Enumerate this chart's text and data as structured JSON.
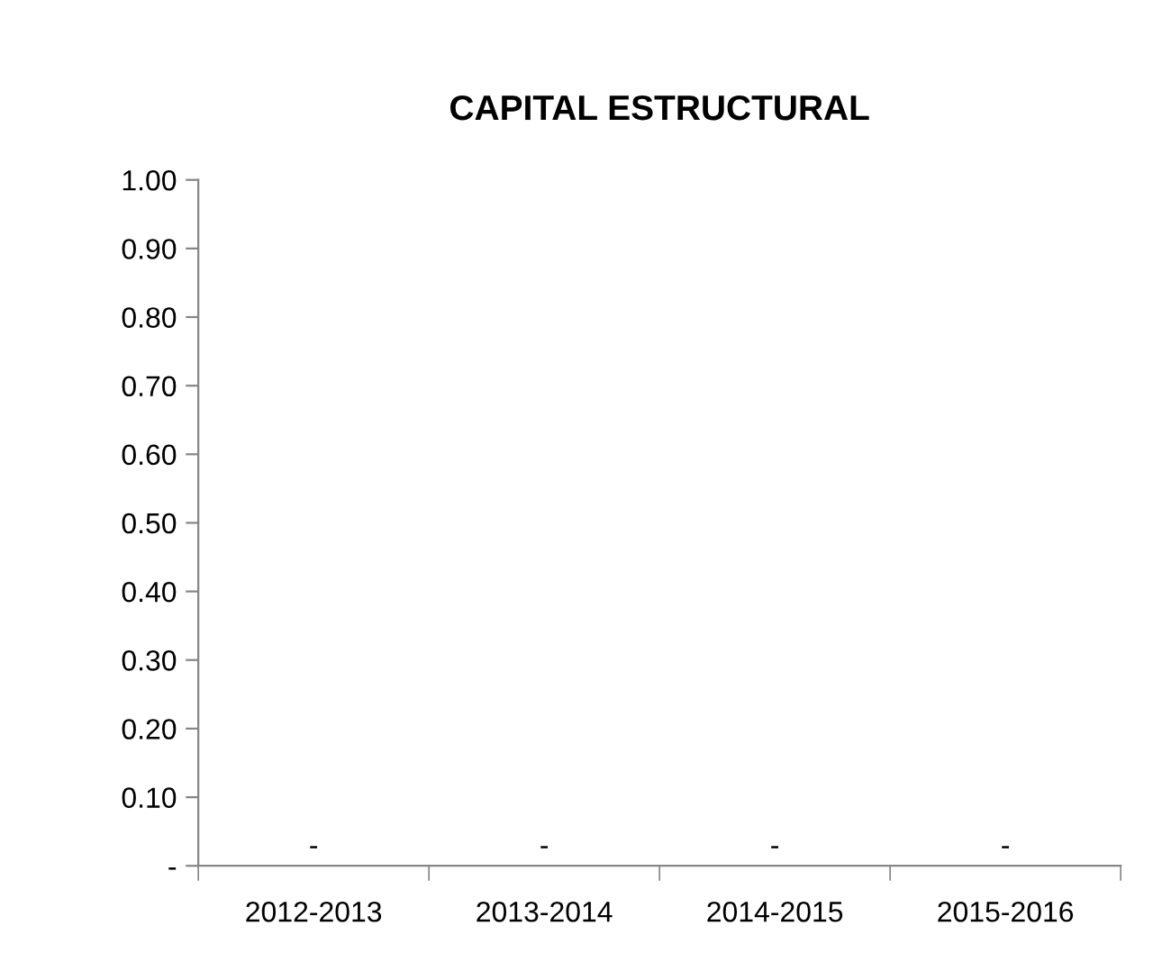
{
  "chart_data": {
    "type": "bar",
    "title": "CAPITAL ESTRUCTURAL",
    "categories": [
      "2012-2013",
      "2013-2014",
      "2014-2015",
      "2015-2016"
    ],
    "values": [
      0,
      0,
      0,
      0
    ],
    "value_labels": [
      "-",
      "-",
      "-",
      "-"
    ],
    "ylim": [
      0,
      1.0
    ],
    "yticks": [
      {
        "value": 0,
        "label": "-"
      },
      {
        "value": 0.1,
        "label": "0.10"
      },
      {
        "value": 0.2,
        "label": "0.20"
      },
      {
        "value": 0.3,
        "label": "0.30"
      },
      {
        "value": 0.4,
        "label": "0.40"
      },
      {
        "value": 0.5,
        "label": "0.50"
      },
      {
        "value": 0.6,
        "label": "0.60"
      },
      {
        "value": 0.7,
        "label": "0.70"
      },
      {
        "value": 0.8,
        "label": "0.80"
      },
      {
        "value": 0.9,
        "label": "0.90"
      },
      {
        "value": 1.0,
        "label": "1.00"
      }
    ],
    "grid": false,
    "legend": false
  }
}
